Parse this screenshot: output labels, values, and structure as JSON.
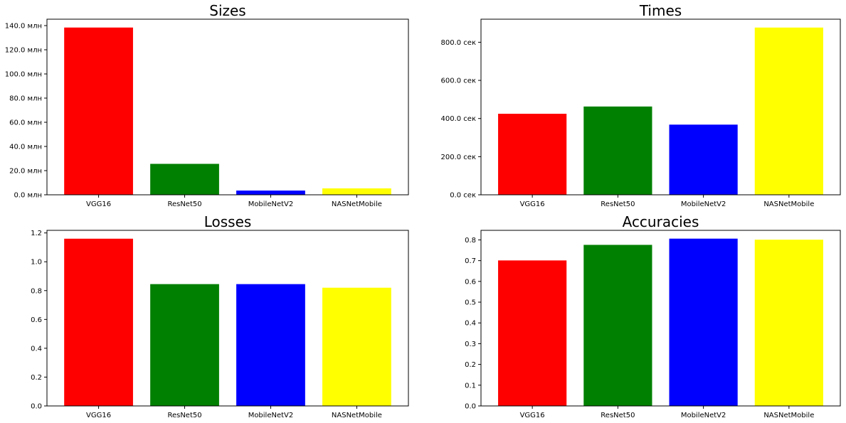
{
  "chart_data": [
    {
      "type": "bar",
      "title": "Sizes",
      "categories": [
        "VGG16",
        "ResNet50",
        "MobileNetV2",
        "NASNetMobile"
      ],
      "values": [
        138.4,
        25.6,
        3.5,
        5.3
      ],
      "colors": [
        "#ff0000",
        "#008000",
        "#0000ff",
        "#ffff00"
      ],
      "ylim": [
        0,
        145.3
      ],
      "yticks": [
        0,
        20,
        40,
        60,
        80,
        100,
        120,
        140
      ],
      "ytick_labels": [
        "0.0 млн",
        "20.0 млн",
        "40.0 млн",
        "60.0 млн",
        "80.0 млн",
        "100.0 млн",
        "120.0 млн",
        "140.0 млн"
      ],
      "xlabel": "",
      "ylabel": "",
      "grid": false
    },
    {
      "type": "bar",
      "title": "Times",
      "categories": [
        "VGG16",
        "ResNet50",
        "MobileNetV2",
        "NASNetMobile"
      ],
      "values": [
        425,
        463,
        368,
        877
      ],
      "colors": [
        "#ff0000",
        "#008000",
        "#0000ff",
        "#ffff00"
      ],
      "ylim": [
        0,
        920.9
      ],
      "yticks": [
        0,
        200,
        400,
        600,
        800
      ],
      "ytick_labels": [
        "0.0 сек",
        "200.0 сек",
        "400.0 сек",
        "600.0 сек",
        "800.0 сек"
      ],
      "xlabel": "",
      "ylabel": "",
      "grid": false
    },
    {
      "type": "bar",
      "title": "Losses",
      "categories": [
        "VGG16",
        "ResNet50",
        "MobileNetV2",
        "NASNetMobile"
      ],
      "values": [
        1.16,
        0.845,
        0.845,
        0.82
      ],
      "colors": [
        "#ff0000",
        "#008000",
        "#0000ff",
        "#ffff00"
      ],
      "ylim": [
        0,
        1.218
      ],
      "yticks": [
        0,
        0.2,
        0.4,
        0.6,
        0.8,
        1.0,
        1.2
      ],
      "ytick_labels": [
        "0.0",
        "0.2",
        "0.4",
        "0.6",
        "0.8",
        "1.0",
        "1.2"
      ],
      "xlabel": "",
      "ylabel": "",
      "grid": false
    },
    {
      "type": "bar",
      "title": "Accuracies",
      "categories": [
        "VGG16",
        "ResNet50",
        "MobileNetV2",
        "NASNetMobile"
      ],
      "values": [
        0.701,
        0.776,
        0.806,
        0.801
      ],
      "colors": [
        "#ff0000",
        "#008000",
        "#0000ff",
        "#ffff00"
      ],
      "ylim": [
        0,
        0.846
      ],
      "yticks": [
        0,
        0.1,
        0.2,
        0.3,
        0.4,
        0.5,
        0.6,
        0.7,
        0.8
      ],
      "ytick_labels": [
        "0.0",
        "0.1",
        "0.2",
        "0.3",
        "0.4",
        "0.5",
        "0.6",
        "0.7",
        "0.8"
      ],
      "xlabel": "",
      "ylabel": "",
      "grid": false
    }
  ]
}
